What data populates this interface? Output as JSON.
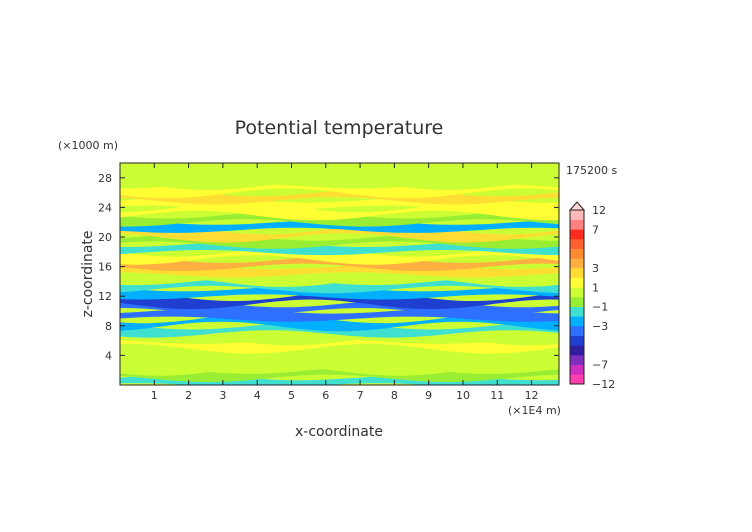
{
  "chart_data": {
    "type": "heatmap",
    "title": "Potential temperature",
    "xlabel": "x-coordinate",
    "ylabel": "z-coordinate",
    "x_unit": "(×1E4 m)",
    "y_unit": "(×1000 m)",
    "time_label": "175200 s",
    "xlim": [
      0,
      12.8
    ],
    "ylim": [
      0,
      30
    ],
    "x_ticks": [
      1,
      2,
      3,
      4,
      5,
      6,
      7,
      8,
      9,
      10,
      11,
      12
    ],
    "y_ticks": [
      4,
      8,
      12,
      16,
      20,
      24,
      28
    ],
    "colorbar": {
      "levels": [
        -12,
        -9,
        -7,
        -6,
        -5,
        -4,
        -3,
        -2,
        -1,
        0,
        1,
        2,
        3,
        4,
        5,
        6,
        7,
        9,
        12
      ],
      "tick_labels": [
        {
          "value": 12,
          "text": "12"
        },
        {
          "value": 7,
          "text": "7"
        },
        {
          "value": 3,
          "text": "3"
        },
        {
          "value": 1,
          "text": "1"
        },
        {
          "value": -1,
          "text": "−1"
        },
        {
          "value": -3,
          "text": "−3"
        },
        {
          "value": -7,
          "text": "−7"
        },
        {
          "value": -12,
          "text": "−12"
        }
      ],
      "colors": [
        "#ff3fb0",
        "#cf2fbf",
        "#7f2fc0",
        "#2f1fa0",
        "#1f3fd0",
        "#2f6fff",
        "#00b0ff",
        "#3fe0d0",
        "#99ee33",
        "#ccff33",
        "#ffff33",
        "#ffdd33",
        "#ffb040",
        "#ff8a30",
        "#ff6030",
        "#ff2a1f",
        "#ff8080",
        "#ffb8b8"
      ]
    },
    "bands": [
      {
        "z": 0.5,
        "value": -1.5
      },
      {
        "z": 1.5,
        "value": -0.5
      },
      {
        "z": 2.5,
        "value": 0.3
      },
      {
        "z": 3.5,
        "value": 0.8
      },
      {
        "z": 4.5,
        "value": 0.2
      },
      {
        "z": 5.5,
        "value": 1.2
      },
      {
        "z": 6.5,
        "value": 0.3
      },
      {
        "z": 7.5,
        "value": -1.5
      },
      {
        "z": 8.5,
        "value": -2.5
      },
      {
        "z": 9.5,
        "value": -3.4
      },
      {
        "z": 10.5,
        "value": -3.6
      },
      {
        "z": 11.5,
        "value": -4.5
      },
      {
        "z": 12.5,
        "value": -2.8
      },
      {
        "z": 13.5,
        "value": -1.5
      },
      {
        "z": 14.5,
        "value": 0.6
      },
      {
        "z": 15.5,
        "value": 2.6
      },
      {
        "z": 16.5,
        "value": 3.0
      },
      {
        "z": 17.5,
        "value": 1.2
      },
      {
        "z": 18.5,
        "value": -2.0
      },
      {
        "z": 19.5,
        "value": -0.8
      },
      {
        "z": 20.5,
        "value": 2.8
      },
      {
        "z": 21.5,
        "value": -2.5
      },
      {
        "z": 22.5,
        "value": -0.5
      },
      {
        "z": 23.5,
        "value": 1.6
      },
      {
        "z": 24.5,
        "value": 1.2
      },
      {
        "z": 25.5,
        "value": 2.0
      },
      {
        "z": 26.5,
        "value": 1.0
      },
      {
        "z": 27.5,
        "value": 0.8
      },
      {
        "z": 28.5,
        "value": 0.6
      },
      {
        "z": 29.5,
        "value": 0.5
      }
    ]
  }
}
